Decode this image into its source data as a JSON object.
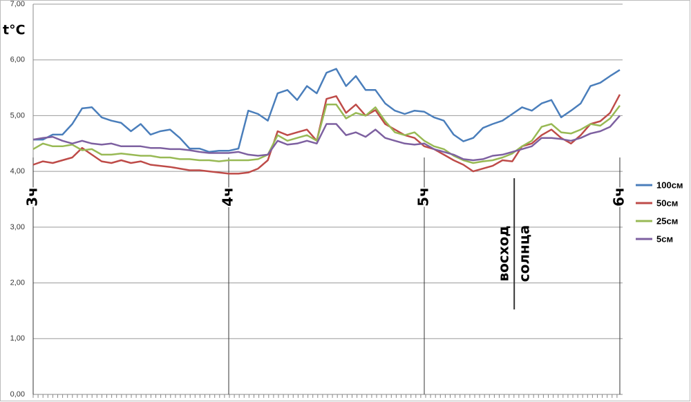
{
  "chart_data": {
    "type": "line",
    "y_label": "t°C",
    "xlim": [
      3,
      6
    ],
    "xticks": [
      {
        "value": 3,
        "label": "3ч"
      },
      {
        "value": 4,
        "label": "4ч"
      },
      {
        "value": 5,
        "label": "5ч"
      },
      {
        "value": 6,
        "label": "6ч"
      }
    ],
    "ylim": [
      0,
      7
    ],
    "yticks": [
      {
        "value": 0,
        "label": "0,00"
      },
      {
        "value": 1,
        "label": "1,00"
      },
      {
        "value": 2,
        "label": "2,00"
      },
      {
        "value": 3,
        "label": "3,00"
      },
      {
        "value": 4,
        "label": "4,00"
      },
      {
        "value": 5,
        "label": "5,00"
      },
      {
        "value": 6,
        "label": "6,00"
      },
      {
        "value": 7,
        "label": "7,00"
      }
    ],
    "grid": true,
    "legend": "right",
    "annotations": [
      {
        "x": 5.46,
        "lines": [
          "восход",
          "солнца"
        ]
      }
    ],
    "x": [
      3,
      3.05,
      3.1,
      3.15,
      3.2,
      3.25,
      3.3,
      3.35,
      3.4,
      3.45,
      3.5,
      3.55,
      3.6,
      3.65,
      3.7,
      3.75,
      3.8,
      3.85,
      3.9,
      3.95,
      4,
      4.05,
      4.1,
      4.15,
      4.2,
      4.25,
      4.3,
      4.35,
      4.4,
      4.45,
      4.5,
      4.55,
      4.6,
      4.65,
      4.7,
      4.75,
      4.8,
      4.85,
      4.9,
      4.95,
      5,
      5.05,
      5.1,
      5.15,
      5.2,
      5.25,
      5.3,
      5.35,
      5.4,
      5.45,
      5.5,
      5.55,
      5.6,
      5.65,
      5.7,
      5.75,
      5.8,
      5.85,
      5.9,
      5.95,
      6
    ],
    "series": [
      {
        "name": "100см",
        "color": "#4a7ebb",
        "values": [
          4.57,
          4.57,
          4.66,
          4.66,
          4.85,
          5.13,
          5.15,
          4.97,
          4.91,
          4.87,
          4.72,
          4.85,
          4.66,
          4.72,
          4.75,
          4.6,
          4.41,
          4.41,
          4.35,
          4.37,
          4.37,
          4.41,
          5.09,
          5.03,
          4.91,
          5.4,
          5.46,
          5.28,
          5.53,
          5.4,
          5.77,
          5.84,
          5.53,
          5.71,
          5.46,
          5.46,
          5.22,
          5.09,
          5.03,
          5.09,
          5.07,
          4.97,
          4.91,
          4.66,
          4.54,
          4.6,
          4.78,
          4.85,
          4.91,
          5.03,
          5.15,
          5.09,
          5.22,
          5.28,
          4.97,
          5.09,
          5.22,
          5.53,
          5.59,
          5.71,
          5.82
        ]
      },
      {
        "name": "50см",
        "color": "#be4b48",
        "values": [
          4.12,
          4.18,
          4.15,
          4.2,
          4.25,
          4.42,
          4.3,
          4.18,
          4.15,
          4.2,
          4.15,
          4.18,
          4.12,
          4.1,
          4.08,
          4.05,
          4.02,
          4.02,
          4.0,
          3.98,
          3.96,
          3.96,
          3.98,
          4.05,
          4.2,
          4.72,
          4.65,
          4.7,
          4.75,
          4.55,
          5.3,
          5.35,
          5.05,
          5.2,
          5.0,
          5.1,
          4.85,
          4.75,
          4.65,
          4.6,
          4.45,
          4.4,
          4.3,
          4.2,
          4.12,
          4.0,
          4.05,
          4.1,
          4.2,
          4.18,
          4.45,
          4.5,
          4.65,
          4.75,
          4.6,
          4.5,
          4.65,
          4.85,
          4.9,
          5.05,
          5.38
        ]
      },
      {
        "name": "25см",
        "color": "#98b954",
        "values": [
          4.4,
          4.5,
          4.45,
          4.45,
          4.48,
          4.38,
          4.4,
          4.3,
          4.3,
          4.32,
          4.3,
          4.28,
          4.28,
          4.25,
          4.25,
          4.22,
          4.22,
          4.2,
          4.2,
          4.18,
          4.2,
          4.2,
          4.2,
          4.22,
          4.3,
          4.65,
          4.55,
          4.6,
          4.65,
          4.55,
          5.2,
          5.2,
          4.95,
          5.05,
          5.0,
          5.15,
          4.9,
          4.7,
          4.65,
          4.7,
          4.55,
          4.45,
          4.4,
          4.28,
          4.2,
          4.15,
          4.18,
          4.2,
          4.25,
          4.32,
          4.45,
          4.55,
          4.8,
          4.85,
          4.7,
          4.68,
          4.75,
          4.85,
          4.82,
          4.95,
          5.18
        ]
      },
      {
        "name": "5см",
        "color": "#7d60a0",
        "values": [
          4.57,
          4.6,
          4.62,
          4.55,
          4.5,
          4.55,
          4.5,
          4.48,
          4.5,
          4.45,
          4.45,
          4.45,
          4.42,
          4.42,
          4.4,
          4.4,
          4.38,
          4.35,
          4.33,
          4.33,
          4.33,
          4.35,
          4.3,
          4.28,
          4.3,
          4.55,
          4.48,
          4.5,
          4.55,
          4.5,
          4.85,
          4.85,
          4.65,
          4.7,
          4.62,
          4.75,
          4.6,
          4.55,
          4.5,
          4.48,
          4.5,
          4.4,
          4.35,
          4.3,
          4.22,
          4.2,
          4.22,
          4.28,
          4.3,
          4.35,
          4.4,
          4.45,
          4.6,
          4.6,
          4.58,
          4.55,
          4.6,
          4.68,
          4.72,
          4.8,
          5.0
        ]
      }
    ]
  }
}
